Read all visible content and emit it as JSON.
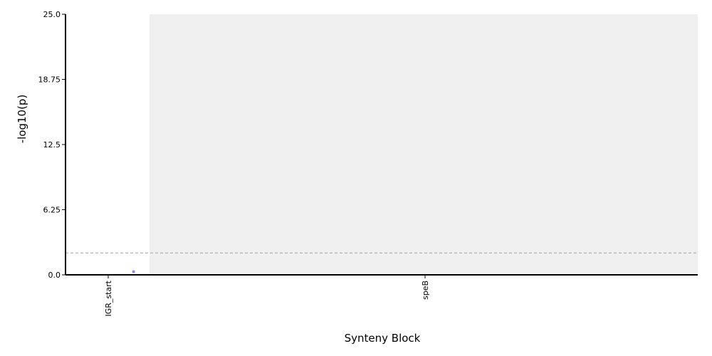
{
  "chart_data": {
    "type": "scatter",
    "xlabel": "Synteny Block",
    "ylabel": "-log10(p)",
    "ylim": [
      0,
      25
    ],
    "y_ticks": [
      "0.0",
      "6.25",
      "12.5",
      "18.75",
      "25.0"
    ],
    "y_tick_values": [
      0,
      6.25,
      12.5,
      18.75,
      25
    ],
    "x_categories": [
      "IGR_start",
      "speB"
    ],
    "shaded_category": "speB",
    "threshold": 2.1,
    "points": [
      {
        "category": "IGR_start",
        "y": 0.3
      }
    ],
    "grid": false,
    "colors": {
      "point": "#8888dd",
      "threshold_line": "#a0a0a0",
      "shade": "#f0f0f0",
      "axis": "#000000"
    }
  }
}
